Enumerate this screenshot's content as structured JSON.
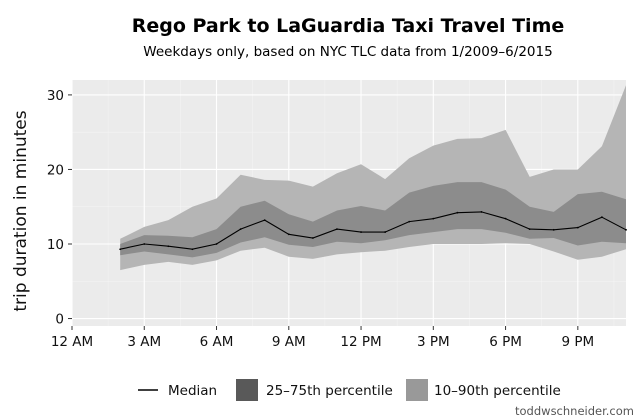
{
  "colors": {
    "panel_bg": "#ebebeb",
    "grid_major": "#ffffff",
    "grid_minor": "#f4f4f4",
    "band_outer": "#b5b5b5",
    "band_inner": "#8c8c8c",
    "median_line": "#000000",
    "legend_outer": "#999999",
    "legend_inner": "#595959"
  },
  "chart_data": {
    "type": "area",
    "title": "Rego Park to LaGuardia Taxi Travel Time",
    "subtitle": "Weekdays only, based on NYC TLC data from 1/2009–6/2015",
    "xlabel": "",
    "ylabel": "trip duration in minutes",
    "xlim": [
      0,
      23
    ],
    "ylim": [
      -1,
      32
    ],
    "x_ticks": [
      0,
      3,
      6,
      9,
      12,
      15,
      18,
      21
    ],
    "x_tick_labels": [
      "12 AM",
      "3 AM",
      "6 AM",
      "9 AM",
      "12 PM",
      "3 PM",
      "6 PM",
      "9 PM"
    ],
    "y_ticks": [
      0,
      10,
      20,
      30
    ],
    "y_tick_labels": [
      "0",
      "10",
      "20",
      "30"
    ],
    "grid": true,
    "legend_position": "bottom",
    "x": [
      2,
      3,
      4,
      5,
      6,
      7,
      8,
      9,
      10,
      11,
      12,
      13,
      14,
      15,
      16,
      17,
      18,
      19,
      20,
      21,
      22,
      23
    ],
    "series": [
      {
        "name": "Median",
        "values": [
          9.3,
          10.0,
          9.7,
          9.3,
          10.0,
          12.0,
          13.2,
          11.3,
          10.8,
          12.0,
          11.6,
          11.6,
          13.0,
          13.4,
          14.2,
          14.3,
          13.4,
          12.0,
          11.9,
          12.2,
          13.6,
          11.9
        ]
      },
      {
        "name": "25–75th percentile",
        "lower": [
          8.5,
          9.0,
          8.6,
          8.2,
          8.8,
          10.2,
          10.9,
          9.9,
          9.6,
          10.3,
          10.1,
          10.5,
          11.2,
          11.6,
          12.0,
          12.0,
          11.5,
          10.7,
          10.8,
          9.8,
          10.3,
          10.1
        ],
        "upper": [
          10.0,
          11.2,
          11.1,
          10.9,
          12.0,
          15.0,
          15.8,
          14.0,
          13.0,
          14.5,
          15.1,
          14.5,
          16.9,
          17.8,
          18.3,
          18.3,
          17.3,
          15.0,
          14.3,
          16.7,
          17.0,
          16.0
        ]
      },
      {
        "name": "10–90th percentile",
        "lower": [
          6.5,
          7.2,
          7.6,
          7.2,
          7.8,
          9.1,
          9.5,
          8.3,
          8.0,
          8.6,
          8.9,
          9.1,
          9.6,
          10.0,
          10.0,
          10.0,
          10.1,
          10.0,
          9.0,
          7.9,
          8.3,
          9.3
        ],
        "upper": [
          10.7,
          12.3,
          13.2,
          15.0,
          16.1,
          19.3,
          18.6,
          18.5,
          17.7,
          19.5,
          20.7,
          18.7,
          21.5,
          23.2,
          24.1,
          24.2,
          25.3,
          19.0,
          20.0,
          20.0,
          23.1,
          31.3
        ]
      }
    ]
  },
  "legend": {
    "median": "Median",
    "iqr": "25–75th percentile",
    "p10_90": "10–90th percentile"
  },
  "credit": "toddwschneider.com"
}
